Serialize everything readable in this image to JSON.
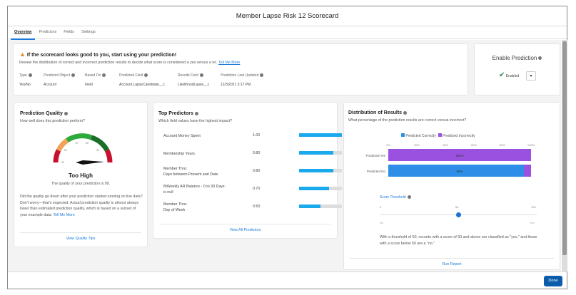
{
  "title": "Member Lapse Risk 12 Scorecard",
  "tabs": [
    {
      "label": "Overview"
    },
    {
      "label": "Predictors"
    },
    {
      "label": "Fields"
    },
    {
      "label": "Settings"
    }
  ],
  "banner": {
    "heading": "If the scorecard looks good to you, start using your prediction!",
    "text": "Review the distribution of correct and incorrect prediction results to decide what score is considered a yes versus a no.",
    "link": "Tell Me More",
    "fields": [
      {
        "label": "Type",
        "value": "Yes/No"
      },
      {
        "label": "Predicted Object",
        "value": "Account"
      },
      {
        "label": "Based On",
        "value": "Field"
      },
      {
        "label": "Predicted Field",
        "value": "Account.LapseCandidate__c"
      },
      {
        "label": "Results Field",
        "value": "LikelihoodLapse__c"
      },
      {
        "label": "Prediction Last Updated",
        "value": "12/3/2021 3:17 PM"
      }
    ]
  },
  "enable": {
    "title": "Enable Prediction",
    "status": "Enabled"
  },
  "quality": {
    "title": "Prediction Quality",
    "subtitle": "How well does this prediction perform?",
    "gauge_value": 99,
    "gauge_ticks": [
      "50",
      "60",
      "70",
      "80",
      "90",
      "100"
    ],
    "rating": "Too High",
    "summary": "The quality of your prediction is 99.",
    "body": "Did the quality go down after your prediction started running on live data? Don't worry—that's expected. Actual prediction quality is almost always lower than estimated prediction quality, which is based on a subset of your example data.",
    "link": "Tell Me More",
    "footer": "View Quality Tips"
  },
  "predictors": {
    "title": "Top Predictors",
    "subtitle": "Which field values have the highest impact?",
    "footer": "View All Predictors",
    "items": [
      {
        "l1": "Account Money Spent",
        "l2": "",
        "value": "1.00",
        "v": 1.0
      },
      {
        "l1": "Membership Years",
        "l2": "",
        "value": "0.80",
        "v": 0.8
      },
      {
        "l1": "Member Thru:",
        "l2": "Days between Present and Date",
        "value": "0.80",
        "v": 0.8
      },
      {
        "l1": "BiWeekly AR Balance - 0 to 30 Days:",
        "l2": "is null",
        "value": "0.70",
        "v": 0.7
      },
      {
        "l1": "Member Thru:",
        "l2": "Day of Week",
        "value": "0.50",
        "v": 0.5
      }
    ]
  },
  "distribution": {
    "title": "Distribution of Results",
    "subtitle": "What percentage of the prediction results are correct versus incorrect?",
    "footer": "Run Report",
    "chart_data": {
      "type": "bar",
      "orientation": "horizontal",
      "stacked": true,
      "categories": [
        "Predicted Yes",
        "Predicted No"
      ],
      "ticks": [
        "0%",
        "20%",
        "40%",
        "60%",
        "80%",
        "100%"
      ],
      "legend_position": "top",
      "series": [
        {
          "name": "Predicted Correctly",
          "color": "#2e8de6",
          "values": [
            0,
            95
          ]
        },
        {
          "name": "Predicted Incorrectly",
          "color": "#9b51e0",
          "values": [
            100,
            5
          ]
        }
      ],
      "labels": [
        "100%",
        "95%"
      ]
    },
    "threshold": {
      "label": "Score Threshold",
      "value": 50,
      "min": "0",
      "mid": "50",
      "max": "100",
      "left": "No",
      "right": "Yes"
    },
    "explain": "With a threshold of 50, records with a score of 50 and above are classified as \"yes,\" and those with a score below 50 are a \"no.\""
  },
  "done": "Done"
}
